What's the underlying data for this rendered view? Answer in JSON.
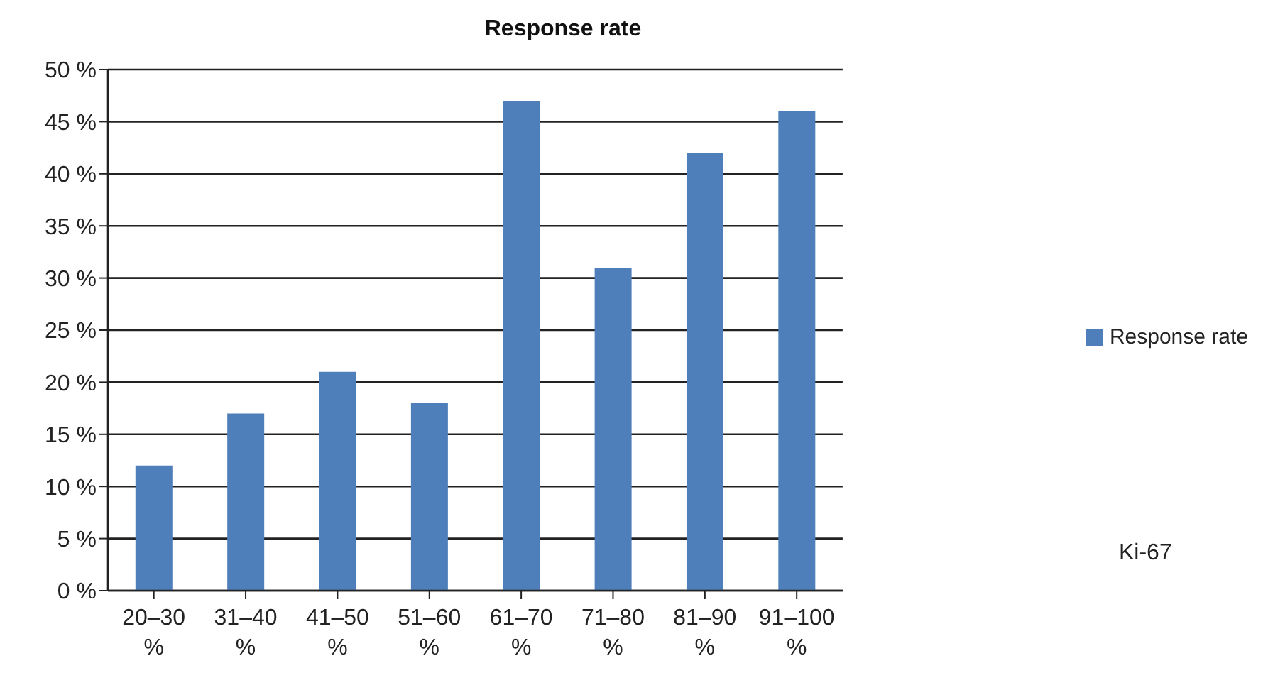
{
  "chart_data": {
    "type": "bar",
    "title": "Response rate",
    "categories": [
      "20–30 %",
      "31–40 %",
      "41–50 %",
      "51–60 %",
      "61–70 %",
      "71–80 %",
      "81–90 %",
      "91–100 %"
    ],
    "series": [
      {
        "name": "Response rate",
        "color": "#4f7fba",
        "values": [
          12,
          17,
          21,
          18,
          47,
          31,
          42,
          46
        ]
      }
    ],
    "ylim": [
      0,
      50
    ],
    "yticks": [
      {
        "value": 0,
        "label": "0 %"
      },
      {
        "value": 5,
        "label": "5 %"
      },
      {
        "value": 10,
        "label": "10 %"
      },
      {
        "value": 15,
        "label": "15 %"
      },
      {
        "value": 20,
        "label": "20 %"
      },
      {
        "value": 25,
        "label": "25 %"
      },
      {
        "value": 30,
        "label": "30 %"
      },
      {
        "value": 35,
        "label": "35 %"
      },
      {
        "value": 40,
        "label": "40 %"
      },
      {
        "value": 45,
        "label": "45 %"
      },
      {
        "value": 50,
        "label": "50 %"
      }
    ],
    "grid": "y",
    "legend": "right",
    "annotations": [
      "Ki-67"
    ]
  }
}
